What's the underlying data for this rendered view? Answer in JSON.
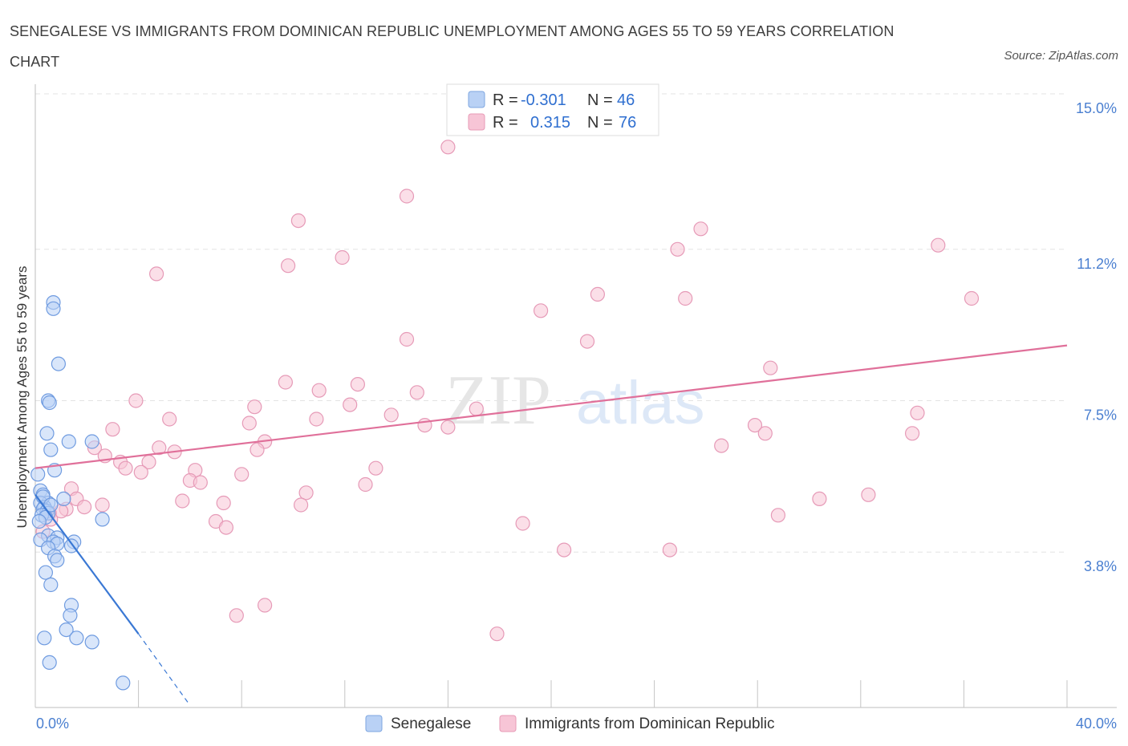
{
  "title": "SENEGALESE VS IMMIGRANTS FROM DOMINICAN REPUBLIC UNEMPLOYMENT AMONG AGES 55 TO 59 YEARS CORRELATION CHART",
  "source": "Source: ZipAtlas.com",
  "watermark": {
    "zip": "ZIP",
    "atlas": "atlas"
  },
  "colors": {
    "blue": "#3a78d4",
    "blue_fill": "#b9d1f5",
    "pink": "#e0709a",
    "pink_fill": "#f7c5d6",
    "grid": "#e3e3e3",
    "axis_label": "#4a7fd0"
  },
  "legend": {
    "r_label": "R =",
    "n_label": "N =",
    "blue": {
      "r": "-0.301",
      "n": "46"
    },
    "pink": {
      "r": "0.315",
      "n": "76"
    }
  },
  "chart_data": {
    "type": "scatter",
    "xlabel": "",
    "ylabel": "Unemployment Among Ages 55 to 59 years",
    "xlim": [
      0,
      40
    ],
    "ylim": [
      0,
      15
    ],
    "x_tick_labels": [
      "0.0%",
      "40.0%"
    ],
    "y_ticks": [
      3.8,
      7.5,
      11.2,
      15.0
    ],
    "y_tick_labels": [
      "3.8%",
      "7.5%",
      "11.2%",
      "15.0%"
    ],
    "legend_position": "top-center",
    "series": [
      {
        "name": "Senegalese",
        "color": "#3a78d4",
        "r": -0.301,
        "n": 46,
        "trend": {
          "x0": 0.0,
          "y0": 5.2,
          "x1": 4.0,
          "y1": 1.8,
          "dash_to_x": 6.0,
          "dash_to_y": 0.05
        },
        "points": [
          [
            0.7,
            9.9
          ],
          [
            0.7,
            9.75
          ],
          [
            0.9,
            8.4
          ],
          [
            0.5,
            7.5
          ],
          [
            0.55,
            7.45
          ],
          [
            0.45,
            6.7
          ],
          [
            2.2,
            6.5
          ],
          [
            1.3,
            6.5
          ],
          [
            0.6,
            6.3
          ],
          [
            0.75,
            5.8
          ],
          [
            0.1,
            5.7
          ],
          [
            0.2,
            5.3
          ],
          [
            0.3,
            5.2
          ],
          [
            1.1,
            5.1
          ],
          [
            0.5,
            5.0
          ],
          [
            0.2,
            5.0
          ],
          [
            0.35,
            4.9
          ],
          [
            0.3,
            4.85
          ],
          [
            0.45,
            4.8
          ],
          [
            0.5,
            4.75
          ],
          [
            0.25,
            4.7
          ],
          [
            0.4,
            4.65
          ],
          [
            2.6,
            4.6
          ],
          [
            0.15,
            4.55
          ],
          [
            0.5,
            4.2
          ],
          [
            0.85,
            4.15
          ],
          [
            0.2,
            4.1
          ],
          [
            0.7,
            4.05
          ],
          [
            0.85,
            4.0
          ],
          [
            1.5,
            4.05
          ],
          [
            1.4,
            3.95
          ],
          [
            0.5,
            3.9
          ],
          [
            0.75,
            3.7
          ],
          [
            0.85,
            3.6
          ],
          [
            0.4,
            3.3
          ],
          [
            0.6,
            3.0
          ],
          [
            1.4,
            2.5
          ],
          [
            1.35,
            2.25
          ],
          [
            1.2,
            1.9
          ],
          [
            0.35,
            1.7
          ],
          [
            1.6,
            1.7
          ],
          [
            2.2,
            1.6
          ],
          [
            0.55,
            1.1
          ],
          [
            3.4,
            0.6
          ],
          [
            0.3,
            5.15
          ],
          [
            0.6,
            4.95
          ]
        ]
      },
      {
        "name": "Immigrants from Dominican Republic",
        "color": "#e0709a",
        "r": 0.315,
        "n": 76,
        "trend": {
          "x0": 0.0,
          "y0": 5.85,
          "x1": 40.0,
          "y1": 8.85
        },
        "points": [
          [
            16.0,
            13.7
          ],
          [
            14.4,
            12.5
          ],
          [
            10.2,
            11.9
          ],
          [
            25.8,
            11.7
          ],
          [
            24.9,
            11.2
          ],
          [
            35.0,
            11.3
          ],
          [
            11.9,
            11.0
          ],
          [
            9.8,
            10.8
          ],
          [
            4.7,
            10.6
          ],
          [
            21.8,
            10.1
          ],
          [
            25.2,
            10.0
          ],
          [
            36.3,
            10.0
          ],
          [
            19.6,
            9.7
          ],
          [
            14.4,
            9.0
          ],
          [
            21.4,
            8.95
          ],
          [
            28.5,
            8.3
          ],
          [
            9.7,
            7.95
          ],
          [
            12.5,
            7.9
          ],
          [
            11.0,
            7.75
          ],
          [
            14.8,
            7.7
          ],
          [
            3.9,
            7.5
          ],
          [
            12.2,
            7.4
          ],
          [
            8.5,
            7.35
          ],
          [
            17.1,
            7.3
          ],
          [
            13.8,
            7.15
          ],
          [
            5.2,
            7.05
          ],
          [
            10.9,
            7.05
          ],
          [
            8.3,
            6.95
          ],
          [
            15.1,
            6.9
          ],
          [
            27.9,
            6.9
          ],
          [
            3.0,
            6.8
          ],
          [
            16.0,
            6.85
          ],
          [
            28.3,
            6.7
          ],
          [
            34.0,
            6.7
          ],
          [
            34.2,
            7.2
          ],
          [
            8.9,
            6.5
          ],
          [
            26.6,
            6.4
          ],
          [
            4.8,
            6.35
          ],
          [
            2.3,
            6.35
          ],
          [
            5.4,
            6.25
          ],
          [
            8.6,
            6.3
          ],
          [
            2.7,
            6.15
          ],
          [
            3.3,
            6.0
          ],
          [
            4.4,
            6.0
          ],
          [
            3.5,
            5.85
          ],
          [
            13.2,
            5.85
          ],
          [
            6.2,
            5.8
          ],
          [
            4.1,
            5.75
          ],
          [
            8.0,
            5.7
          ],
          [
            6.0,
            5.55
          ],
          [
            6.4,
            5.5
          ],
          [
            12.8,
            5.45
          ],
          [
            1.4,
            5.35
          ],
          [
            10.5,
            5.25
          ],
          [
            32.3,
            5.2
          ],
          [
            30.4,
            5.1
          ],
          [
            1.6,
            5.1
          ],
          [
            5.7,
            5.05
          ],
          [
            7.3,
            5.0
          ],
          [
            2.6,
            4.95
          ],
          [
            10.3,
            4.95
          ],
          [
            1.9,
            4.9
          ],
          [
            1.2,
            4.85
          ],
          [
            1.0,
            4.8
          ],
          [
            0.55,
            4.75
          ],
          [
            28.8,
            4.7
          ],
          [
            7.0,
            4.55
          ],
          [
            18.9,
            4.5
          ],
          [
            7.4,
            4.4
          ],
          [
            0.3,
            4.3
          ],
          [
            20.5,
            3.85
          ],
          [
            24.6,
            3.85
          ],
          [
            8.9,
            2.5
          ],
          [
            7.8,
            2.25
          ],
          [
            17.9,
            1.8
          ],
          [
            0.6,
            4.6
          ]
        ]
      }
    ]
  }
}
